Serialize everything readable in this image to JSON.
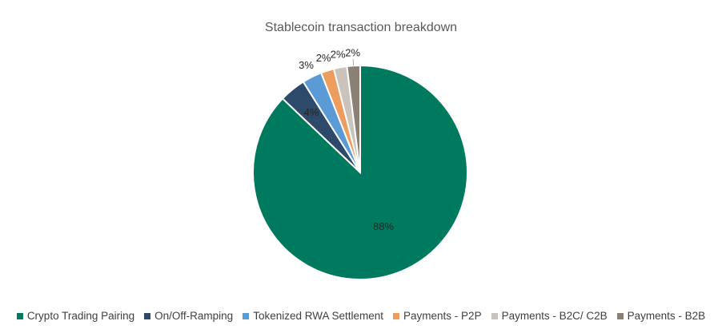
{
  "chart_data": {
    "type": "pie",
    "title": "Stablecoin transaction breakdown",
    "slices": [
      {
        "label": "Crypto Trading Pairing",
        "value": 88,
        "display": "88%",
        "color": "#007A5E"
      },
      {
        "label": "On/Off-Ramping",
        "value": 4,
        "display": "4%",
        "color": "#2E4A6B"
      },
      {
        "label": "Tokenized RWA Settlement",
        "value": 3,
        "display": "3%",
        "color": "#5B9BD5"
      },
      {
        "label": "Payments - P2P",
        "value": 2,
        "display": "2%",
        "color": "#ED9E5F"
      },
      {
        "label": "Payments - B2C/ C2B",
        "value": 2,
        "display": "2%",
        "color": "#C9C3BC"
      },
      {
        "label": "Payments - B2B",
        "value": 2,
        "display": "2%",
        "color": "#8C7F73"
      }
    ],
    "legend_position": "bottom"
  }
}
